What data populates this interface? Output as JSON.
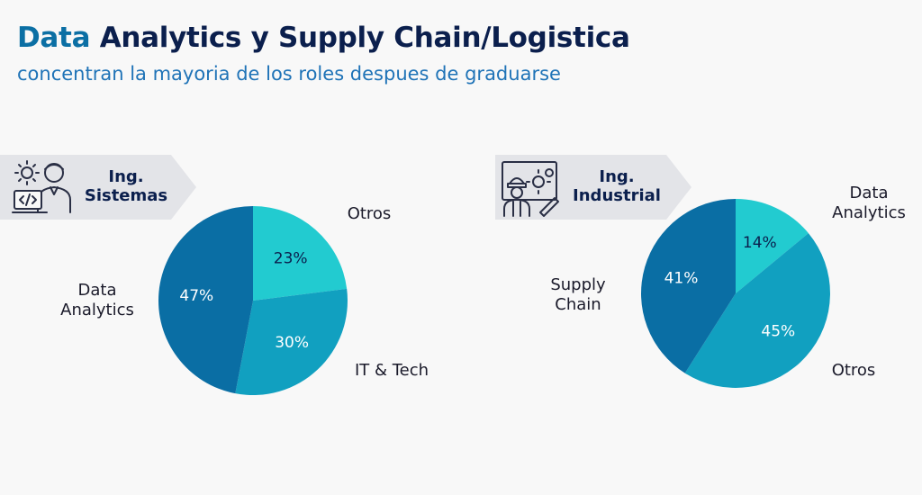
{
  "title_accent": "Data",
  "title_rest": " Analytics y Supply Chain/Logistica",
  "subtitle": "concentran la mayoria de los roles despues de graduarse",
  "banners": [
    {
      "line1": "Ing.",
      "line2": "Sistemas",
      "icon": "developer-laptop-icon"
    },
    {
      "line1": "Ing.",
      "line2": "Industrial",
      "icon": "engineer-gears-icon"
    }
  ],
  "colors": {
    "dark": "#0a6ea4",
    "mid": "#11a0c0",
    "light": "#22cbd0"
  },
  "chart_data": [
    {
      "type": "pie",
      "title": "",
      "slices": [
        {
          "label": "Otros",
          "value": 23,
          "color": "#22cbd0"
        },
        {
          "label": "IT & Tech",
          "value": 30,
          "color": "#11a0c0"
        },
        {
          "label": "Data Analytics",
          "value": 47,
          "color": "#0a6ea4"
        }
      ]
    },
    {
      "type": "pie",
      "title": "",
      "slices": [
        {
          "label": "Data Analytics",
          "value": 14,
          "color": "#22cbd0"
        },
        {
          "label": "Otros",
          "value": 45,
          "color": "#11a0c0"
        },
        {
          "label": "Supply Chain",
          "value": 41,
          "color": "#0a6ea4"
        }
      ]
    }
  ]
}
